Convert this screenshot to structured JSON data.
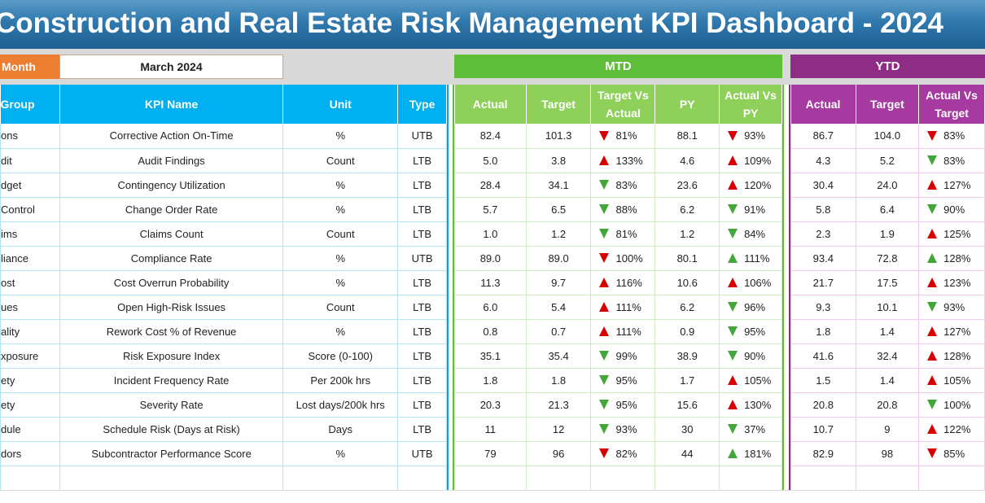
{
  "title": "Construction and Real Estate Risk Management KPI Dashboard - 2024",
  "month_label": "Month",
  "month_value": "March 2024",
  "mtd_label": "MTD",
  "ytd_label": "YTD",
  "left_headers": [
    "Group",
    "KPI Name",
    "Unit",
    "Type"
  ],
  "mtd_headers": [
    "Actual",
    "Target",
    "Target Vs Actual",
    "PY",
    "Actual Vs PY"
  ],
  "ytd_headers": [
    "Actual",
    "Target",
    "Actual Vs Target"
  ],
  "colors": {
    "up_arrow": "red",
    "down_arrow": "green"
  },
  "rows": [
    {
      "group": "ons",
      "kpi": "Corrective Action On-Time",
      "unit": "%",
      "type": "UTB",
      "mtd_actual": "82.4",
      "mtd_target": "101.3",
      "mtd_tva": "81%",
      "mtd_tva_icon": "red-down",
      "mtd_py": "88.1",
      "mtd_avp": "93%",
      "mtd_avp_icon": "red-down",
      "ytd_actual": "86.7",
      "ytd_target": "104.0",
      "ytd_avt": "83%",
      "ytd_avt_icon": "red-down"
    },
    {
      "group": "dit",
      "kpi": "Audit Findings",
      "unit": "Count",
      "type": "LTB",
      "mtd_actual": "5.0",
      "mtd_target": "3.8",
      "mtd_tva": "133%",
      "mtd_tva_icon": "red-up",
      "mtd_py": "4.6",
      "mtd_avp": "109%",
      "mtd_avp_icon": "red-up",
      "ytd_actual": "4.3",
      "ytd_target": "5.2",
      "ytd_avt": "83%",
      "ytd_avt_icon": "green-down"
    },
    {
      "group": "dget",
      "kpi": "Contingency Utilization",
      "unit": "%",
      "type": "LTB",
      "mtd_actual": "28.4",
      "mtd_target": "34.1",
      "mtd_tva": "83%",
      "mtd_tva_icon": "green-down",
      "mtd_py": "23.6",
      "mtd_avp": "120%",
      "mtd_avp_icon": "red-up",
      "ytd_actual": "30.4",
      "ytd_target": "24.0",
      "ytd_avt": "127%",
      "ytd_avt_icon": "red-up"
    },
    {
      "group": "Control",
      "kpi": "Change Order Rate",
      "unit": "%",
      "type": "LTB",
      "mtd_actual": "5.7",
      "mtd_target": "6.5",
      "mtd_tva": "88%",
      "mtd_tva_icon": "green-down",
      "mtd_py": "6.2",
      "mtd_avp": "91%",
      "mtd_avp_icon": "green-down",
      "ytd_actual": "5.8",
      "ytd_target": "6.4",
      "ytd_avt": "90%",
      "ytd_avt_icon": "green-down"
    },
    {
      "group": "ims",
      "kpi": "Claims Count",
      "unit": "Count",
      "type": "LTB",
      "mtd_actual": "1.0",
      "mtd_target": "1.2",
      "mtd_tva": "81%",
      "mtd_tva_icon": "green-down",
      "mtd_py": "1.2",
      "mtd_avp": "84%",
      "mtd_avp_icon": "green-down",
      "ytd_actual": "2.3",
      "ytd_target": "1.9",
      "ytd_avt": "125%",
      "ytd_avt_icon": "red-up"
    },
    {
      "group": "liance",
      "kpi": "Compliance Rate",
      "unit": "%",
      "type": "UTB",
      "mtd_actual": "89.0",
      "mtd_target": "89.0",
      "mtd_tva": "100%",
      "mtd_tva_icon": "red-down",
      "mtd_py": "80.1",
      "mtd_avp": "111%",
      "mtd_avp_icon": "green-up",
      "ytd_actual": "93.4",
      "ytd_target": "72.8",
      "ytd_avt": "128%",
      "ytd_avt_icon": "green-up"
    },
    {
      "group": "ost",
      "kpi": "Cost Overrun Probability",
      "unit": "%",
      "type": "LTB",
      "mtd_actual": "11.3",
      "mtd_target": "9.7",
      "mtd_tva": "116%",
      "mtd_tva_icon": "red-up",
      "mtd_py": "10.6",
      "mtd_avp": "106%",
      "mtd_avp_icon": "red-up",
      "ytd_actual": "21.7",
      "ytd_target": "17.5",
      "ytd_avt": "123%",
      "ytd_avt_icon": "red-up"
    },
    {
      "group": "ues",
      "kpi": "Open High-Risk Issues",
      "unit": "Count",
      "type": "LTB",
      "mtd_actual": "6.0",
      "mtd_target": "5.4",
      "mtd_tva": "111%",
      "mtd_tva_icon": "red-up",
      "mtd_py": "6.2",
      "mtd_avp": "96%",
      "mtd_avp_icon": "green-down",
      "ytd_actual": "9.3",
      "ytd_target": "10.1",
      "ytd_avt": "93%",
      "ytd_avt_icon": "green-down"
    },
    {
      "group": "ality",
      "kpi": "Rework Cost % of Revenue",
      "unit": "%",
      "type": "LTB",
      "mtd_actual": "0.8",
      "mtd_target": "0.7",
      "mtd_tva": "111%",
      "mtd_tva_icon": "red-up",
      "mtd_py": "0.9",
      "mtd_avp": "95%",
      "mtd_avp_icon": "green-down",
      "ytd_actual": "1.8",
      "ytd_target": "1.4",
      "ytd_avt": "127%",
      "ytd_avt_icon": "red-up"
    },
    {
      "group": "xposure",
      "kpi": "Risk Exposure Index",
      "unit": "Score (0-100)",
      "type": "LTB",
      "mtd_actual": "35.1",
      "mtd_target": "35.4",
      "mtd_tva": "99%",
      "mtd_tva_icon": "green-down",
      "mtd_py": "38.9",
      "mtd_avp": "90%",
      "mtd_avp_icon": "green-down",
      "ytd_actual": "41.6",
      "ytd_target": "32.4",
      "ytd_avt": "128%",
      "ytd_avt_icon": "red-up"
    },
    {
      "group": "ety",
      "kpi": "Incident Frequency Rate",
      "unit": "Per 200k hrs",
      "type": "LTB",
      "mtd_actual": "1.8",
      "mtd_target": "1.8",
      "mtd_tva": "95%",
      "mtd_tva_icon": "green-down",
      "mtd_py": "1.7",
      "mtd_avp": "105%",
      "mtd_avp_icon": "red-up",
      "ytd_actual": "1.5",
      "ytd_target": "1.4",
      "ytd_avt": "105%",
      "ytd_avt_icon": "red-up"
    },
    {
      "group": "ety",
      "kpi": "Severity Rate",
      "unit": "Lost days/200k hrs",
      "type": "LTB",
      "mtd_actual": "20.3",
      "mtd_target": "21.3",
      "mtd_tva": "95%",
      "mtd_tva_icon": "green-down",
      "mtd_py": "15.6",
      "mtd_avp": "130%",
      "mtd_avp_icon": "red-up",
      "ytd_actual": "20.8",
      "ytd_target": "20.8",
      "ytd_avt": "100%",
      "ytd_avt_icon": "green-down"
    },
    {
      "group": "dule",
      "kpi": "Schedule Risk (Days at Risk)",
      "unit": "Days",
      "type": "LTB",
      "mtd_actual": "11",
      "mtd_target": "12",
      "mtd_tva": "93%",
      "mtd_tva_icon": "green-down",
      "mtd_py": "30",
      "mtd_avp": "37%",
      "mtd_avp_icon": "green-down",
      "ytd_actual": "10.7",
      "ytd_target": "9",
      "ytd_avt": "122%",
      "ytd_avt_icon": "red-up"
    },
    {
      "group": "dors",
      "kpi": "Subcontractor Performance Score",
      "unit": "%",
      "type": "UTB",
      "mtd_actual": "79",
      "mtd_target": "96",
      "mtd_tva": "82%",
      "mtd_tva_icon": "red-down",
      "mtd_py": "44",
      "mtd_avp": "181%",
      "mtd_avp_icon": "green-up",
      "ytd_actual": "82.9",
      "ytd_target": "98",
      "ytd_avt": "85%",
      "ytd_avt_icon": "red-down"
    }
  ]
}
